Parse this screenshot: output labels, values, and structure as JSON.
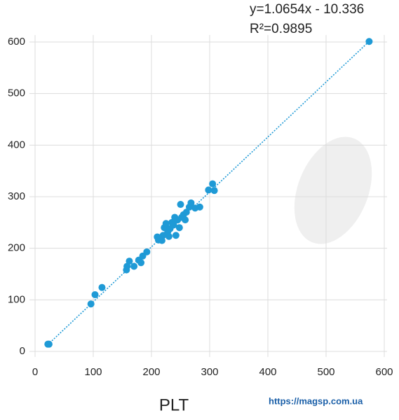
{
  "chart_data": {
    "type": "scatter",
    "x_label": "PLT",
    "watermark": "https://magsp.com.ua",
    "trendline": {
      "equation": "y=1.0654x - 10.336",
      "slope": 1.0654,
      "intercept": -10.336,
      "r2_label": "R²=0.9895"
    },
    "color": "#1f9ad6",
    "xlim": [
      0,
      600
    ],
    "ylim": [
      0,
      600
    ],
    "xticks": [
      0,
      100,
      200,
      300,
      400,
      500,
      600
    ],
    "yticks": [
      0,
      100,
      200,
      300,
      400,
      500,
      600
    ],
    "grid": true,
    "x": [
      22,
      24,
      96,
      103,
      115,
      157,
      158,
      162,
      170,
      178,
      182,
      185,
      192,
      210,
      212,
      218,
      220,
      222,
      225,
      228,
      230,
      232,
      235,
      238,
      240,
      242,
      245,
      248,
      250,
      252,
      255,
      258,
      260,
      265,
      268,
      275,
      283,
      298,
      305,
      308,
      574
    ],
    "values": [
      14,
      14,
      92,
      110,
      124,
      158,
      165,
      175,
      165,
      177,
      172,
      185,
      193,
      222,
      216,
      215,
      225,
      240,
      248,
      232,
      223,
      238,
      250,
      245,
      260,
      225,
      255,
      240,
      285,
      260,
      265,
      255,
      270,
      280,
      288,
      278,
      280,
      313,
      325,
      312,
      601
    ]
  }
}
